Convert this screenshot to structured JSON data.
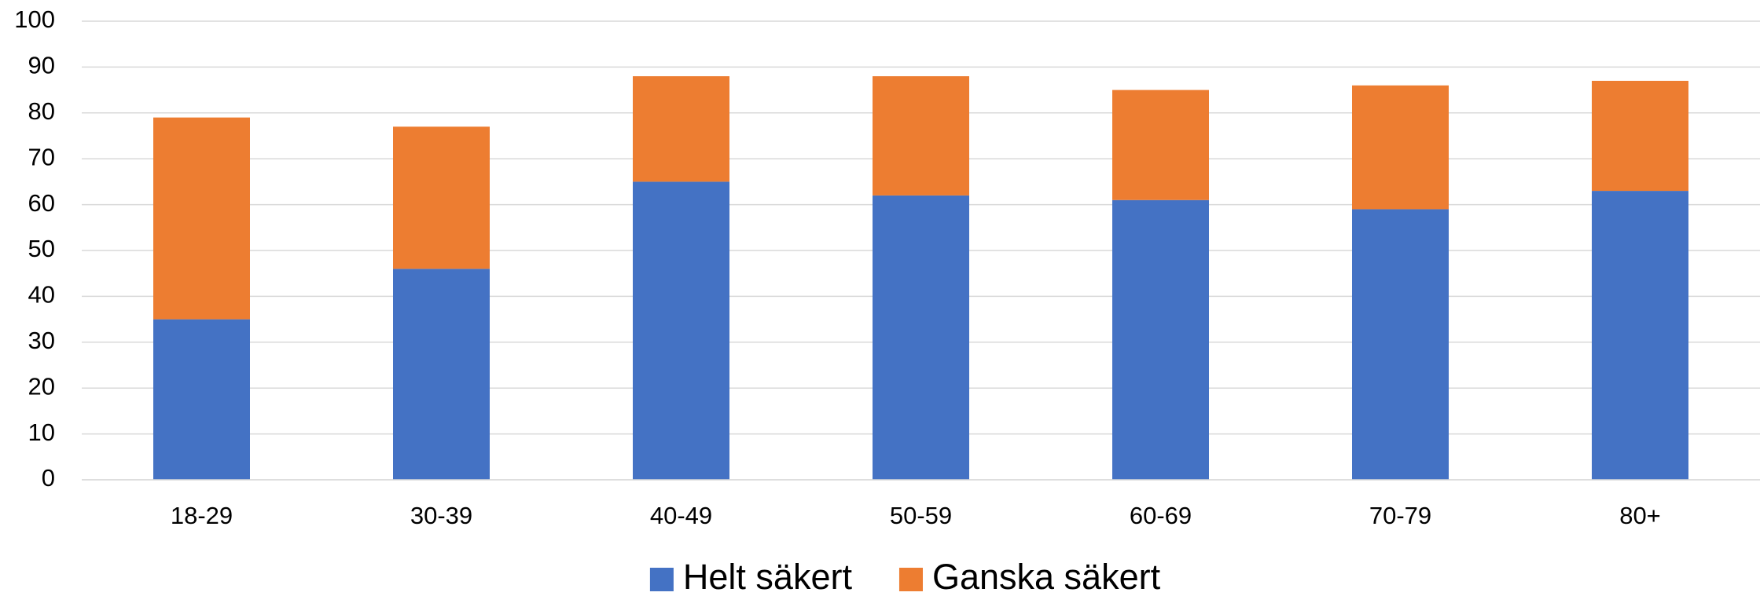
{
  "chart_data": {
    "type": "stacked_bar",
    "categories": [
      "18-29",
      "30-39",
      "40-49",
      "50-59",
      "60-69",
      "70-79",
      "80+"
    ],
    "series": [
      {
        "name": "Helt säkert",
        "color": "#4472c4",
        "values": [
          35,
          46,
          65,
          62,
          61,
          59,
          63
        ]
      },
      {
        "name": "Ganska säkert",
        "color": "#ed7d31",
        "values": [
          44,
          31,
          23,
          26,
          24,
          27,
          24
        ]
      }
    ],
    "ylim": [
      0,
      100
    ],
    "yticks": [
      0,
      10,
      20,
      30,
      40,
      50,
      60,
      70,
      80,
      90,
      100
    ],
    "grid": true,
    "legend": "bottom"
  }
}
